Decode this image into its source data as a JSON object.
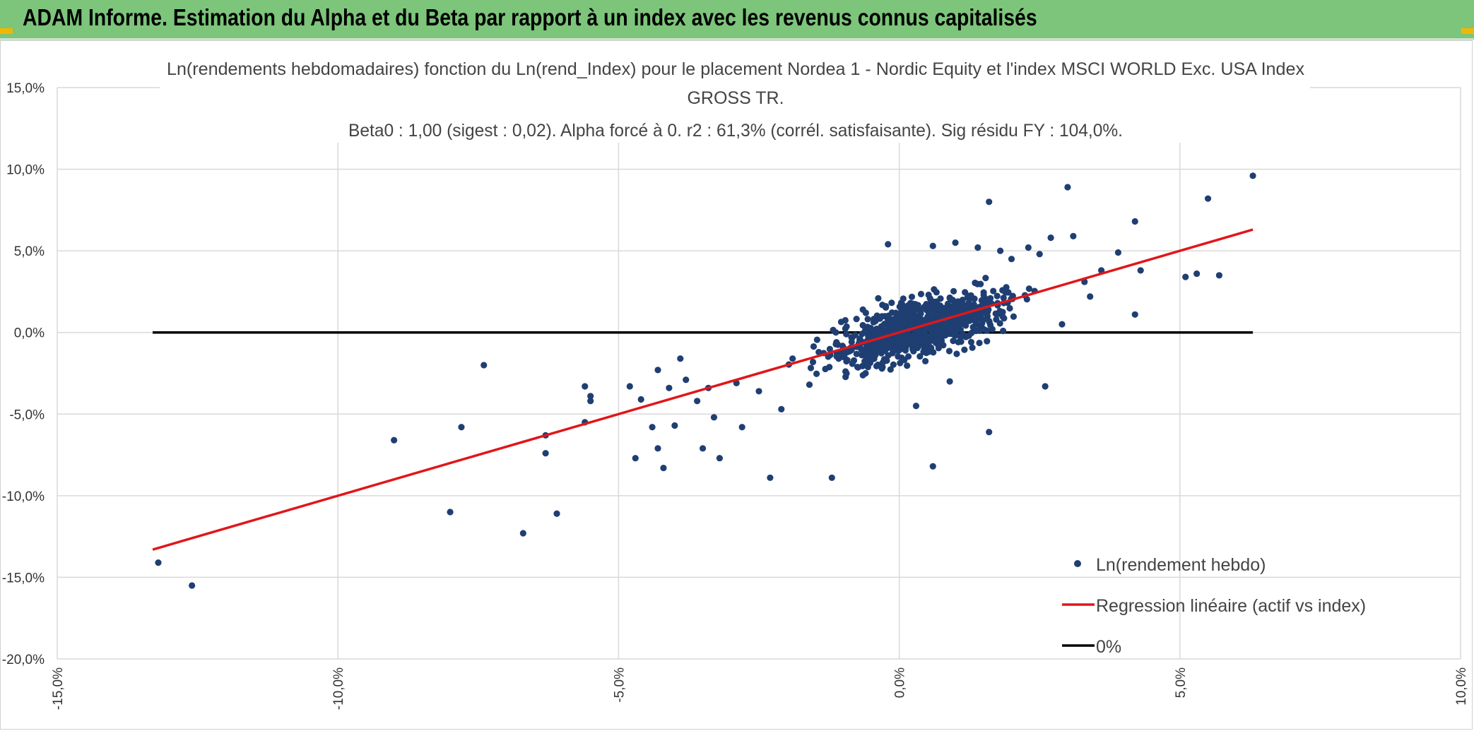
{
  "header": {
    "title": "ADAM Informe. Estimation du Alpha et du Beta par rapport à un index avec les revenus connus capitalisés"
  },
  "colors": {
    "header_bg": "#7cc57a",
    "points": "#1f3f73",
    "regression": "#e0161b",
    "zero_line": "#000000",
    "grid": "#d9d9d9",
    "accent_corner": "#f2b600"
  },
  "chart_data": {
    "type": "scatter",
    "title_lines": [
      "Ln(rendements hebdomadaires) fonction du Ln(rend_Index) pour le placement Nordea 1 - Nordic Equity  et l'index MSCI WORLD Exc. USA Index",
      "GROSS TR.",
      "Beta0 : 1,00 (sigest : 0,02). Alpha forcé à 0. r2 : 61,3% (corrél. satisfaisante). Sig résidu FY : 104,0%."
    ],
    "xlim": [
      -15,
      10
    ],
    "ylim": [
      -20,
      15
    ],
    "x_ticks": [
      -15,
      -10,
      -5,
      0,
      5,
      10
    ],
    "y_ticks": [
      15,
      10,
      5,
      0,
      -5,
      -10,
      -15,
      -20
    ],
    "x_tick_labels": [
      "-15,0%",
      "-10,0%",
      "-5,0%",
      "0,0%",
      "5,0%",
      "10,0%"
    ],
    "y_tick_labels": [
      "15,0%",
      "10,0%",
      "5,0%",
      "0,0%",
      "-5,0%",
      "-10,0%",
      "-15,0%",
      "-20,0%"
    ],
    "regression": {
      "x": [
        -13.3,
        6.3
      ],
      "y": [
        -13.3,
        6.3
      ],
      "slope": 1.0,
      "intercept": 0
    },
    "zero_line": {
      "x": [
        -13.3,
        6.3
      ],
      "y": [
        0,
        0
      ]
    },
    "legend": {
      "position": "bottom-right",
      "entries": [
        "Ln(rendement hebdo)",
        "Regression linéaire (actif vs index)",
        "0%"
      ]
    },
    "series": [
      {
        "name": "Ln(rendement hebdo)",
        "points": [
          [
            -13.2,
            -14.1
          ],
          [
            -12.6,
            -15.5
          ],
          [
            -9.0,
            -6.6
          ],
          [
            -8.0,
            -11.0
          ],
          [
            -7.8,
            -5.8
          ],
          [
            -7.4,
            -2.0
          ],
          [
            -6.7,
            -12.3
          ],
          [
            -6.3,
            -7.4
          ],
          [
            -6.3,
            -6.3
          ],
          [
            -6.1,
            -11.1
          ],
          [
            -5.6,
            -5.5
          ],
          [
            -5.6,
            -3.3
          ],
          [
            -5.5,
            -3.9
          ],
          [
            -5.5,
            -4.2
          ],
          [
            -4.8,
            -3.3
          ],
          [
            -4.7,
            -7.7
          ],
          [
            -4.6,
            -4.1
          ],
          [
            -4.4,
            -5.8
          ],
          [
            -4.3,
            -2.3
          ],
          [
            -4.3,
            -7.1
          ],
          [
            -4.2,
            -8.3
          ],
          [
            -4.1,
            -3.4
          ],
          [
            -4.0,
            -5.7
          ],
          [
            -3.9,
            -1.6
          ],
          [
            -3.8,
            -2.9
          ],
          [
            -3.6,
            -4.2
          ],
          [
            -3.5,
            -7.1
          ],
          [
            -3.4,
            -3.4
          ],
          [
            -3.3,
            -5.2
          ],
          [
            -3.2,
            -7.7
          ],
          [
            -2.9,
            -3.1
          ],
          [
            -2.8,
            -5.8
          ],
          [
            -2.5,
            -3.6
          ],
          [
            -2.3,
            -8.9
          ],
          [
            -2.1,
            -4.7
          ],
          [
            -1.9,
            -1.6
          ],
          [
            -1.6,
            -3.2
          ],
          [
            -1.2,
            -8.9
          ],
          [
            -1.0,
            -1.5
          ],
          [
            -0.6,
            -2.5
          ],
          [
            -0.2,
            5.4
          ],
          [
            0.3,
            -4.5
          ],
          [
            0.6,
            -8.2
          ],
          [
            0.9,
            -3.0
          ],
          [
            1.6,
            8.0
          ],
          [
            1.6,
            -6.1
          ],
          [
            2.3,
            5.2
          ],
          [
            2.6,
            -3.3
          ],
          [
            3.0,
            8.9
          ],
          [
            2.9,
            0.5
          ],
          [
            3.3,
            3.1
          ],
          [
            3.4,
            2.2
          ],
          [
            3.6,
            3.8
          ],
          [
            3.9,
            4.9
          ],
          [
            4.2,
            6.8
          ],
          [
            4.3,
            3.8
          ],
          [
            4.2,
            1.1
          ],
          [
            5.1,
            3.4
          ],
          [
            5.3,
            3.6
          ],
          [
            5.5,
            8.2
          ],
          [
            5.7,
            3.5
          ],
          [
            6.3,
            9.6
          ],
          [
            3.1,
            5.9
          ],
          [
            2.7,
            5.8
          ],
          [
            2.0,
            4.5
          ],
          [
            2.5,
            4.8
          ],
          [
            1.8,
            5.0
          ],
          [
            1.4,
            5.2
          ],
          [
            1.0,
            5.5
          ],
          [
            0.6,
            5.3
          ]
        ]
      }
    ]
  }
}
